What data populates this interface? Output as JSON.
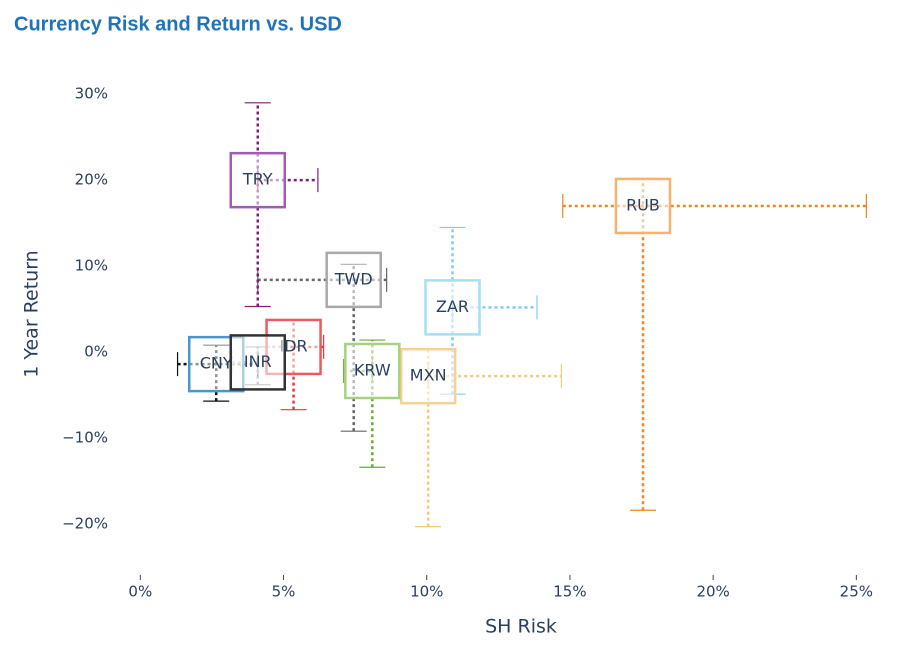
{
  "chart_data": {
    "type": "scatter",
    "title": "Currency Risk and Return vs. USD",
    "x_label": "SH Risk",
    "y_label": "1 Year Return",
    "xlim": [
      -0.5,
      26
    ],
    "ylim": [
      -25,
      32
    ],
    "xticks": [
      {
        "value": 0,
        "label": "0%"
      },
      {
        "value": 5,
        "label": "5%"
      },
      {
        "value": 10,
        "label": "10%"
      },
      {
        "value": 15,
        "label": "15%"
      },
      {
        "value": 20,
        "label": "20%"
      },
      {
        "value": 25,
        "label": "25%"
      }
    ],
    "yticks": [
      {
        "value": -20,
        "label": "−20%"
      },
      {
        "value": -10,
        "label": "−10%"
      },
      {
        "value": 0,
        "label": "0%"
      },
      {
        "value": 10,
        "label": "10%"
      },
      {
        "value": 20,
        "label": "20%"
      },
      {
        "value": 30,
        "label": "30%"
      }
    ],
    "grid": false,
    "series": [
      {
        "name": "RUB",
        "color": "#f7b26b",
        "error_color": "#f0861d",
        "x": 17.55,
        "y": 17.0,
        "x_range": [
          14.75,
          25.35
        ],
        "y_range": [
          -18.4,
          20.2
        ]
      },
      {
        "name": "MXN",
        "color": "#f8d08f",
        "error_color": "#f5c97a",
        "x": 10.05,
        "y": -2.8,
        "x_range": [
          10.05,
          14.7
        ],
        "y_range": [
          -20.3,
          0.3
        ]
      },
      {
        "name": "ZAR",
        "color": "#a5def5",
        "error_color": "#7fcdf0",
        "x": 10.9,
        "y": 5.2,
        "x_range": [
          10.9,
          13.85
        ],
        "y_range": [
          -4.9,
          14.5
        ]
      },
      {
        "name": "KRW",
        "color": "#a6d17f",
        "error_color": "#6aab3a",
        "x": 8.1,
        "y": -2.2,
        "x_range": [
          7.1,
          8.1
        ],
        "y_range": [
          -13.4,
          1.4
        ]
      },
      {
        "name": "TWD",
        "color": "#a9a9a9",
        "error_color": "#666666",
        "x": 7.45,
        "y": 8.4,
        "x_range": [
          4.1,
          8.6
        ],
        "y_range": [
          -9.2,
          10.2
        ]
      },
      {
        "name": "IDR",
        "color": "#ee5a5e",
        "error_color": "#e8383d",
        "x": 5.35,
        "y": 0.6,
        "x_range": [
          4.4,
          6.4
        ],
        "y_range": [
          -6.7,
          3.7
        ]
      },
      {
        "name": "TRY",
        "color": "#a05bb5",
        "error_color": "#7b1f7b",
        "x": 4.1,
        "y": 20.0,
        "x_range": [
          4.1,
          6.2
        ],
        "y_range": [
          5.3,
          29.0
        ]
      },
      {
        "name": "CNY",
        "color": "#4a96c8",
        "error_color": "#111111",
        "x": 2.65,
        "y": -1.4,
        "x_range": [
          1.3,
          4.1
        ],
        "y_range": [
          -5.7,
          0.8
        ]
      },
      {
        "name": "INR",
        "color": "#333333",
        "error_color": "#999999",
        "x": 4.1,
        "y": -1.2,
        "x_range": [
          3.2,
          4.1
        ],
        "y_range": [
          -3.8,
          0.6
        ]
      }
    ]
  }
}
